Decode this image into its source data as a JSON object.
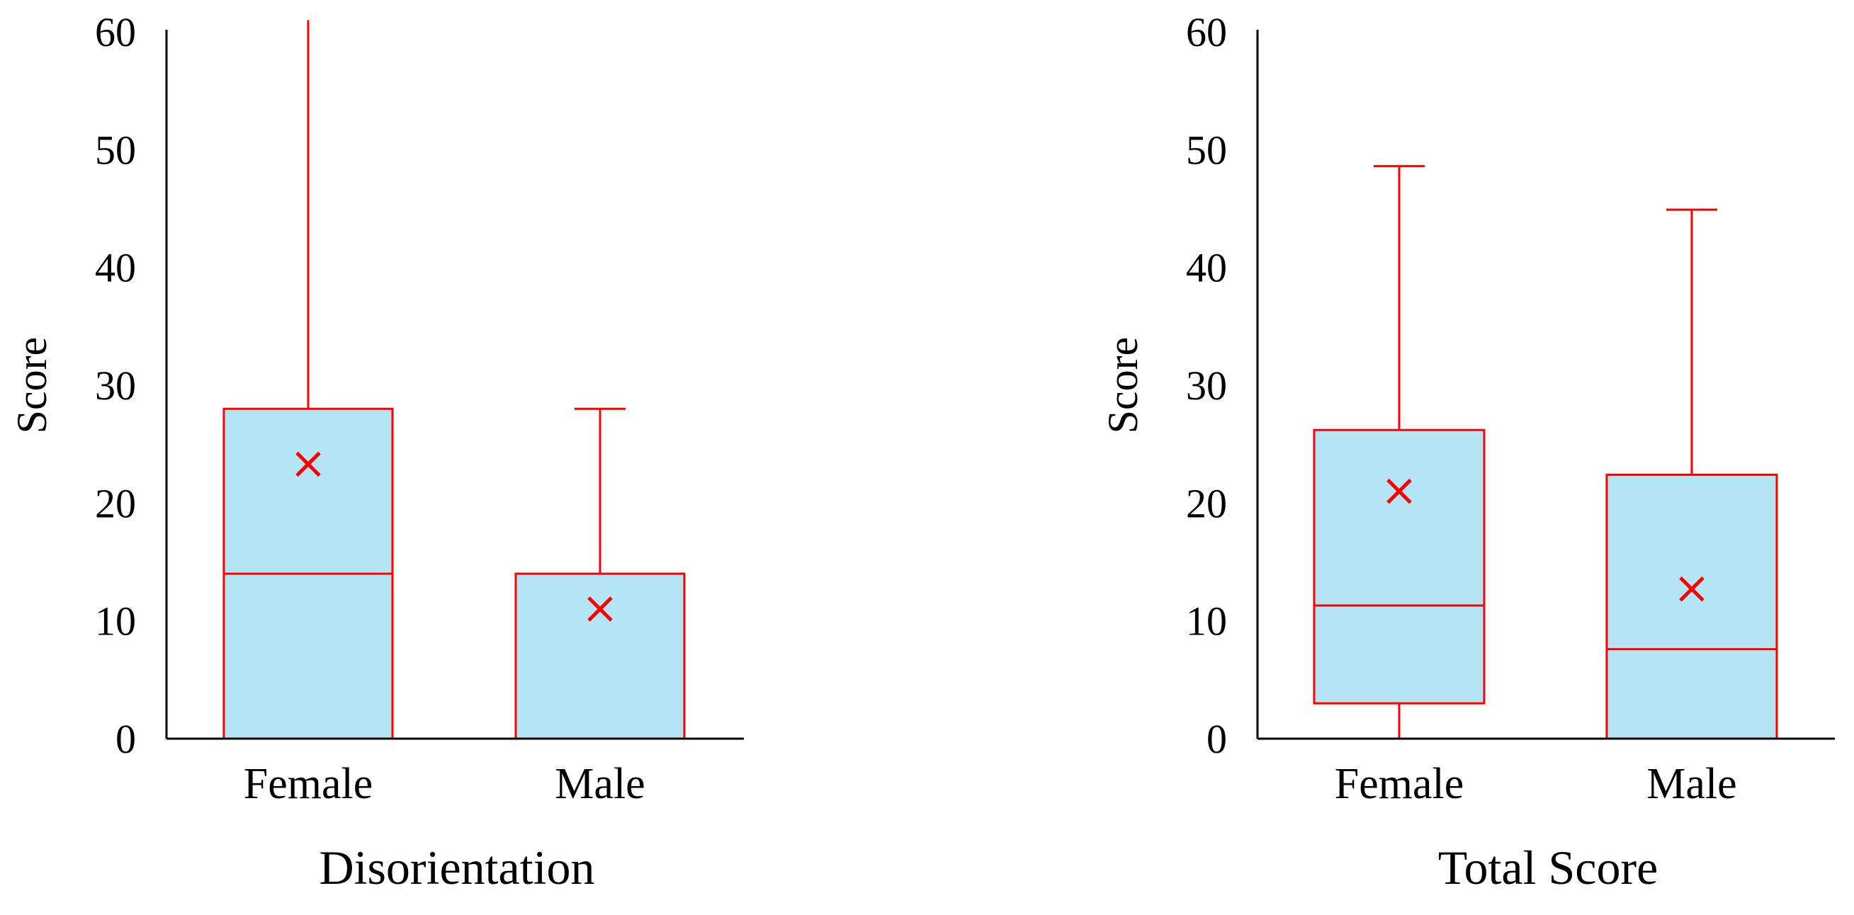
{
  "chart_data": [
    {
      "type": "boxplot",
      "title": "Disorientation",
      "ylabel": "Score",
      "xlabel": "",
      "ylim": [
        0,
        60
      ],
      "yticks": [
        0,
        10,
        20,
        30,
        40,
        50,
        60
      ],
      "grid": false,
      "categories": [
        "Female",
        "Male"
      ],
      "boxes": [
        {
          "category": "Female",
          "whisker_low": 0,
          "q1": 0,
          "median": 14,
          "q3": 28,
          "whisker_high": 61,
          "mean": 23.3
        },
        {
          "category": "Male",
          "whisker_low": 0,
          "q1": 0,
          "median": 0,
          "q3": 14,
          "whisker_high": 28,
          "mean": 11
        }
      ]
    },
    {
      "type": "boxplot",
      "title": "Total Score",
      "ylabel": "Score",
      "xlabel": "",
      "ylim": [
        0,
        60
      ],
      "yticks": [
        0,
        10,
        20,
        30,
        40,
        50,
        60
      ],
      "grid": false,
      "categories": [
        "Female",
        "Male"
      ],
      "boxes": [
        {
          "category": "Female",
          "whisker_low": 0,
          "q1": 3,
          "median": 11.3,
          "q3": 26.2,
          "whisker_high": 48.6,
          "mean": 21
        },
        {
          "category": "Male",
          "whisker_low": 0,
          "q1": 0,
          "median": 7.6,
          "q3": 22.4,
          "whisker_high": 44.9,
          "mean": 12.7
        }
      ]
    }
  ],
  "colors": {
    "box_fill": "#b3e5f4",
    "box_stroke": "#ff0000",
    "mean_marker": "#ff0000",
    "axis": "#000000"
  }
}
